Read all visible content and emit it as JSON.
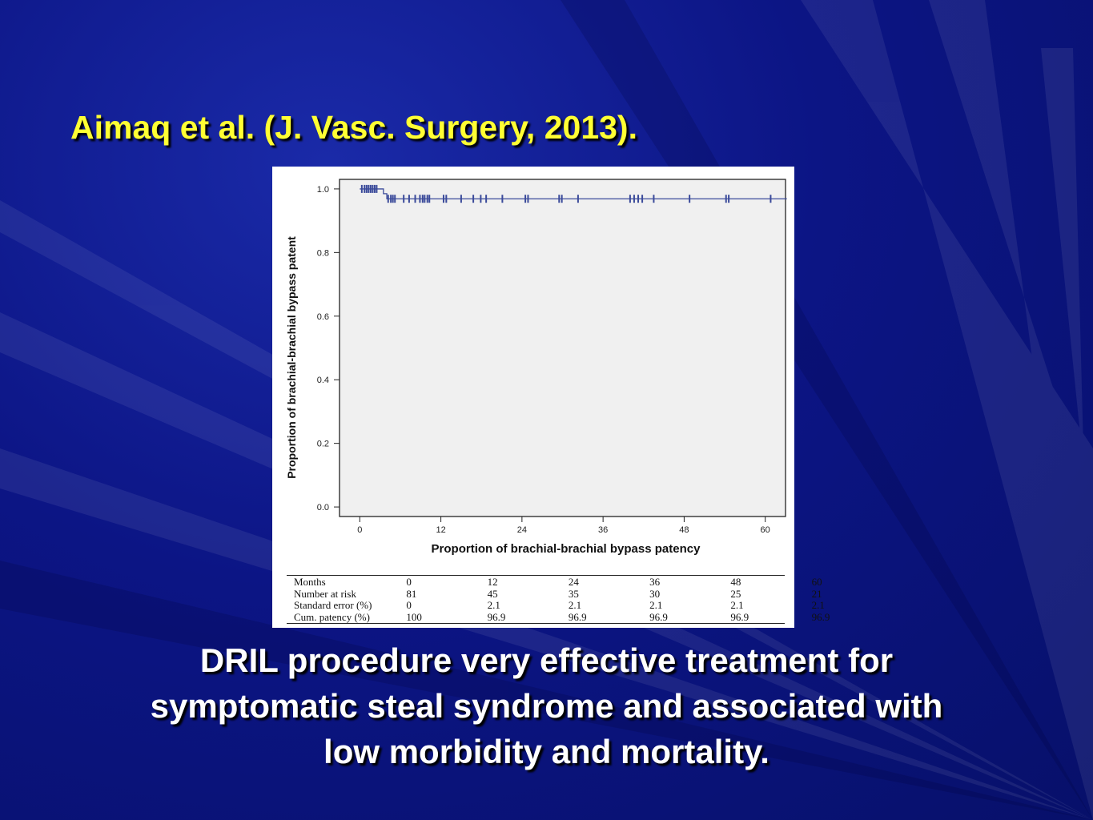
{
  "slide": {
    "title": "Aimaq et al. (J. Vasc. Surgery, 2013).",
    "caption_lines": [
      "DRIL procedure very effective treatment for",
      "symptomatic steal syndrome and associated with",
      "low morbidity and mortality."
    ],
    "colors": {
      "background": "#0c1585",
      "title": "#ffff33",
      "caption": "#ffffff",
      "curve": "#3a4a9a"
    }
  },
  "chart_data": {
    "type": "line",
    "subtype": "kaplan-meier",
    "xlabel": "Proportion of brachial-brachial bypass patency",
    "ylabel": "Proportion of brachial-brachial bypass patent",
    "xlim": [
      -3,
      63
    ],
    "ylim": [
      -0.03,
      1.03
    ],
    "x_ticks": [
      0,
      12,
      24,
      36,
      48,
      60
    ],
    "x_tick_labels": [
      "0",
      "12",
      "24",
      "36",
      "48",
      "60"
    ],
    "y_ticks": [
      0.0,
      0.2,
      0.4,
      0.6,
      0.8,
      1.0
    ],
    "y_tick_labels": [
      "0.0",
      "0.2",
      "0.4",
      "0.6",
      "0.8",
      "1.0"
    ],
    "grid": false,
    "series": [
      {
        "x": [
          0,
          3.5,
          3.5,
          4.0,
          4.0,
          63.2
        ],
        "y": [
          1.0,
          1.0,
          0.985,
          0.985,
          0.969,
          0.969
        ],
        "censored": [
          {
            "x": 0.3,
            "y": 1.0
          },
          {
            "x": 0.7,
            "y": 1.0
          },
          {
            "x": 1.0,
            "y": 1.0
          },
          {
            "x": 1.3,
            "y": 1.0
          },
          {
            "x": 1.6,
            "y": 1.0
          },
          {
            "x": 1.9,
            "y": 1.0
          },
          {
            "x": 2.2,
            "y": 1.0
          },
          {
            "x": 2.5,
            "y": 1.0
          },
          {
            "x": 4.2,
            "y": 0.969
          },
          {
            "x": 4.6,
            "y": 0.969
          },
          {
            "x": 4.9,
            "y": 0.969
          },
          {
            "x": 5.2,
            "y": 0.969
          },
          {
            "x": 6.5,
            "y": 0.969
          },
          {
            "x": 7.3,
            "y": 0.969
          },
          {
            "x": 8.2,
            "y": 0.969
          },
          {
            "x": 8.9,
            "y": 0.969
          },
          {
            "x": 9.3,
            "y": 0.969
          },
          {
            "x": 9.6,
            "y": 0.969
          },
          {
            "x": 10.0,
            "y": 0.969
          },
          {
            "x": 10.3,
            "y": 0.969
          },
          {
            "x": 12.4,
            "y": 0.969
          },
          {
            "x": 12.8,
            "y": 0.969
          },
          {
            "x": 15.0,
            "y": 0.969
          },
          {
            "x": 16.8,
            "y": 0.969
          },
          {
            "x": 17.9,
            "y": 0.969
          },
          {
            "x": 18.7,
            "y": 0.969
          },
          {
            "x": 21.1,
            "y": 0.969
          },
          {
            "x": 24.5,
            "y": 0.969
          },
          {
            "x": 24.9,
            "y": 0.969
          },
          {
            "x": 29.5,
            "y": 0.969
          },
          {
            "x": 29.9,
            "y": 0.969
          },
          {
            "x": 32.3,
            "y": 0.969
          },
          {
            "x": 40.0,
            "y": 0.969
          },
          {
            "x": 40.6,
            "y": 0.969
          },
          {
            "x": 41.2,
            "y": 0.969
          },
          {
            "x": 41.8,
            "y": 0.969
          },
          {
            "x": 43.5,
            "y": 0.969
          },
          {
            "x": 48.8,
            "y": 0.969
          },
          {
            "x": 54.2,
            "y": 0.969
          },
          {
            "x": 54.6,
            "y": 0.969
          },
          {
            "x": 60.8,
            "y": 0.969
          }
        ]
      }
    ],
    "table": {
      "columns_x": [
        0,
        12,
        24,
        36,
        48,
        60
      ],
      "rows": [
        {
          "label": "Months",
          "values": [
            "0",
            "12",
            "24",
            "36",
            "48",
            "60"
          ]
        },
        {
          "label": "Number at risk",
          "values": [
            "81",
            "45",
            "35",
            "30",
            "25",
            "21"
          ]
        },
        {
          "label": "Standard error (%)",
          "values": [
            "0",
            "2.1",
            "2.1",
            "2.1",
            "2.1",
            "2.1"
          ]
        },
        {
          "label": "Cum. patency  (%)",
          "values": [
            "100",
            "96.9",
            "96.9",
            "96.9",
            "96.9",
            "96.9"
          ]
        }
      ]
    }
  }
}
